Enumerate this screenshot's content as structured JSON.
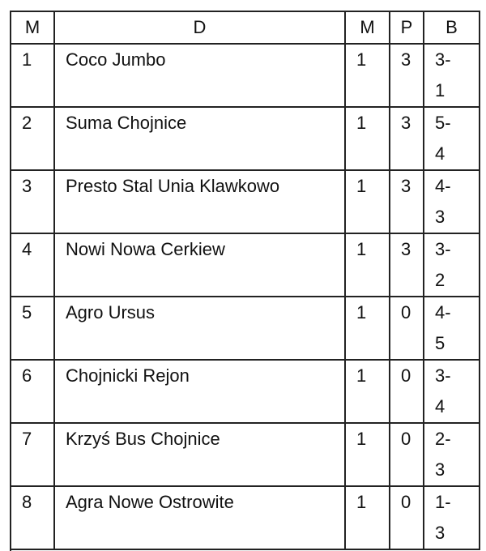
{
  "table": {
    "header": [
      "M",
      "D",
      "M",
      "P",
      "B"
    ],
    "rows": [
      [
        "1",
        "Coco Jumbo",
        "1",
        "3",
        "3-1"
      ],
      [
        "2",
        "Suma Chojnice",
        "1",
        "3",
        "5-4"
      ],
      [
        "3",
        "Presto Stal Unia Klawkowo",
        "1",
        "3",
        "4-3"
      ],
      [
        "4",
        "Nowi Nowa Cerkiew",
        "1",
        "3",
        "3-2"
      ],
      [
        "5",
        "Agro Ursus",
        "1",
        "0",
        "4-5"
      ],
      [
        "6",
        "Chojnicki Rejon",
        "1",
        "0",
        "3-4"
      ],
      [
        "7",
        "Krzyś Bus Chojnice",
        "1",
        "0",
        "2-3"
      ],
      [
        "8",
        "Agra Nowe Ostrowite",
        "1",
        "0",
        "1-3"
      ]
    ]
  }
}
